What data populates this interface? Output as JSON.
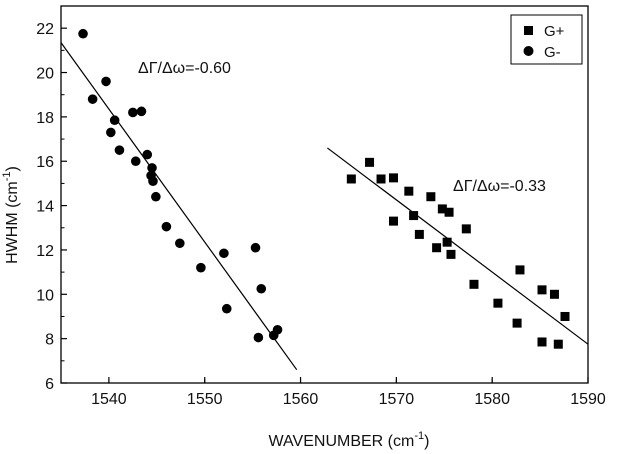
{
  "chart_data": {
    "type": "scatter",
    "xlabel_main": "WAVENUMBER (cm",
    "xlabel_sup": "-1",
    "xlabel_tail": ")",
    "ylabel_main": "HWHM (cm",
    "ylabel_sup": "-1",
    "ylabel_tail": ")",
    "xlim": [
      1535,
      1590
    ],
    "ylim": [
      6,
      23
    ],
    "xticks": [
      1540,
      1550,
      1560,
      1570,
      1580,
      1590
    ],
    "yticks": [
      6,
      8,
      10,
      12,
      14,
      16,
      18,
      20,
      22
    ],
    "grid": false,
    "legend_position": "top-right",
    "series": [
      {
        "name": "G+",
        "marker": "square",
        "color": "#000000",
        "points": [
          [
            1565.3,
            15.2
          ],
          [
            1567.2,
            15.95
          ],
          [
            1568.4,
            15.2
          ],
          [
            1569.7,
            15.25
          ],
          [
            1569.7,
            13.3
          ],
          [
            1571.3,
            14.65
          ],
          [
            1571.8,
            13.55
          ],
          [
            1572.4,
            12.7
          ],
          [
            1573.6,
            14.4
          ],
          [
            1574.2,
            12.1
          ],
          [
            1574.8,
            13.85
          ],
          [
            1575.3,
            12.35
          ],
          [
            1575.5,
            13.7
          ],
          [
            1575.7,
            11.8
          ],
          [
            1577.3,
            12.95
          ],
          [
            1578.1,
            10.45
          ],
          [
            1580.6,
            9.6
          ],
          [
            1582.6,
            8.7
          ],
          [
            1582.9,
            11.1
          ],
          [
            1585.2,
            10.2
          ],
          [
            1585.2,
            7.85
          ],
          [
            1586.5,
            10.0
          ],
          [
            1586.9,
            7.75
          ],
          [
            1587.6,
            9.0
          ]
        ]
      },
      {
        "name": "G-",
        "marker": "circle",
        "color": "#000000",
        "points": [
          [
            1537.3,
            21.75
          ],
          [
            1538.3,
            18.8
          ],
          [
            1539.7,
            19.6
          ],
          [
            1540.2,
            17.3
          ],
          [
            1540.6,
            17.85
          ],
          [
            1541.1,
            16.5
          ],
          [
            1542.5,
            18.2
          ],
          [
            1542.8,
            16.0
          ],
          [
            1543.4,
            18.25
          ],
          [
            1544.0,
            16.3
          ],
          [
            1544.4,
            15.35
          ],
          [
            1544.5,
            15.7
          ],
          [
            1544.6,
            15.1
          ],
          [
            1544.9,
            14.4
          ],
          [
            1546.0,
            13.05
          ],
          [
            1547.4,
            12.3
          ],
          [
            1549.6,
            11.2
          ],
          [
            1552.0,
            11.85
          ],
          [
            1552.3,
            9.35
          ],
          [
            1555.3,
            12.1
          ],
          [
            1555.6,
            8.05
          ],
          [
            1555.9,
            10.25
          ],
          [
            1557.2,
            8.15
          ],
          [
            1557.6,
            8.4
          ]
        ]
      }
    ],
    "fit_lines": [
      {
        "x": [
          1535,
          1559.6
        ],
        "y": [
          21.35,
          6.6
        ],
        "label": "ΔΓ/Δω=-0.60"
      },
      {
        "x": [
          1562.8,
          1590
        ],
        "y": [
          16.6,
          7.75
        ],
        "label": "ΔΓ/Δω=-0.33"
      }
    ]
  }
}
